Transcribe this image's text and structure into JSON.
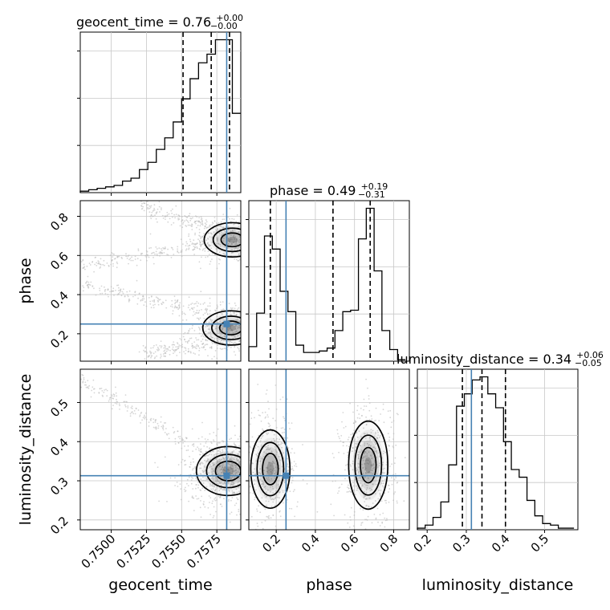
{
  "titles": {
    "geocent_time": {
      "main": "geocent_time = 0.76",
      "sup": "+0.00",
      "sub": "−0.00"
    },
    "phase": {
      "main": "phase = 0.49",
      "sup": "+0.19",
      "sub": "−0.31"
    },
    "luminosity_distance": {
      "main": "luminosity_distance = 0.34",
      "sup": "+0.06",
      "sub": "−0.05"
    }
  },
  "axis_labels": {
    "geocent_time": "geocent_time",
    "phase": "phase",
    "luminosity_distance": "luminosity_distance"
  },
  "chart_data": {
    "type": "corner",
    "parameters": [
      "geocent_time",
      "phase",
      "luminosity_distance"
    ],
    "colors": {
      "truth": "#4682b4",
      "hist": "#000000",
      "points": "#bbbbbb",
      "density": "#444444"
    },
    "grid": true,
    "ranges": {
      "geocent_time": [
        0.7478,
        0.7592
      ],
      "phase": [
        0.06,
        0.88
      ],
      "luminosity_distance": [
        0.175,
        0.585
      ]
    },
    "ticks": {
      "geocent_time": {
        "values": [
          0.75,
          0.7525,
          0.755,
          0.7575
        ],
        "labels": [
          "0.7500",
          "0.7525",
          "0.7550",
          "0.7575"
        ]
      },
      "phase": {
        "values": [
          0.2,
          0.4,
          0.6,
          0.8
        ],
        "labels": [
          "0.2",
          "0.4",
          "0.6",
          "0.8"
        ]
      },
      "luminosity_distance": {
        "values": [
          0.2,
          0.3,
          0.4,
          0.5
        ],
        "labels": [
          "0.2",
          "0.3",
          "0.4",
          "0.5"
        ]
      }
    },
    "truths": {
      "geocent_time": 0.7582,
      "phase": 0.25,
      "luminosity_distance": 0.313
    },
    "quantiles": {
      "geocent_time": [
        0.7551,
        0.7571,
        0.7584
      ],
      "phase": [
        0.17,
        0.49,
        0.68
      ],
      "luminosity_distance": [
        0.29,
        0.34,
        0.4
      ]
    },
    "histograms": {
      "geocent_time": {
        "bin_edges": [
          0.7478,
          0.7484,
          0.749,
          0.7496,
          0.7502,
          0.7508,
          0.7514,
          0.752,
          0.7526,
          0.7532,
          0.7538,
          0.7544,
          0.755,
          0.7556,
          0.7562,
          0.7568,
          0.7574,
          0.758,
          0.7586,
          0.7592
        ],
        "counts": [
          1,
          2,
          3,
          4,
          5,
          8,
          10,
          16,
          21,
          30,
          38,
          49,
          65,
          79,
          90,
          96,
          106,
          106,
          55
        ]
      },
      "phase": {
        "bin_edges": [
          0.06,
          0.1,
          0.14,
          0.18,
          0.22,
          0.26,
          0.3,
          0.34,
          0.38,
          0.42,
          0.46,
          0.5,
          0.54,
          0.58,
          0.62,
          0.66,
          0.7,
          0.74,
          0.78,
          0.82,
          0.86
        ],
        "counts": [
          10,
          33,
          86,
          77,
          48,
          34,
          11,
          6,
          6,
          7,
          9,
          21,
          34,
          35,
          84,
          105,
          62,
          21,
          8,
          1
        ]
      },
      "luminosity_distance": {
        "bin_edges": [
          0.175,
          0.195,
          0.215,
          0.235,
          0.255,
          0.275,
          0.295,
          0.315,
          0.335,
          0.355,
          0.375,
          0.395,
          0.415,
          0.435,
          0.455,
          0.475,
          0.495,
          0.515,
          0.535,
          0.555,
          0.575
        ],
        "counts": [
          1,
          3,
          8,
          18,
          42,
          80,
          88,
          97,
          99,
          88,
          79,
          57,
          39,
          34,
          19,
          9,
          4,
          3,
          1,
          1
        ]
      }
    },
    "panels_2d": [
      {
        "x": "geocent_time",
        "y": "phase",
        "modes": [
          {
            "x": 0.7586,
            "y": 0.68,
            "sx": 0.0008,
            "sy": 0.035,
            "w": 0.45
          },
          {
            "x": 0.7585,
            "y": 0.23,
            "sx": 0.0008,
            "sy": 0.035,
            "w": 0.55
          }
        ],
        "wings": [
          {
            "x0": 0.7478,
            "y0": 0.55,
            "x1": 0.757,
            "y1": 0.66
          },
          {
            "x0": 0.7478,
            "y0": 0.45,
            "x1": 0.757,
            "y1": 0.31
          },
          {
            "x0": 0.752,
            "y0": 0.85,
            "x1": 0.7585,
            "y1": 0.72
          },
          {
            "x0": 0.752,
            "y0": 0.09,
            "x1": 0.7585,
            "y1": 0.17
          }
        ]
      },
      {
        "x": "geocent_time",
        "y": "luminosity_distance",
        "modes": [
          {
            "x": 0.7583,
            "y": 0.325,
            "sx": 0.0009,
            "sy": 0.025,
            "w": 1.0
          }
        ],
        "wings": [
          {
            "x0": 0.7478,
            "y0": 0.56,
            "x1": 0.757,
            "y1": 0.36
          }
        ]
      },
      {
        "x": "phase",
        "y": "luminosity_distance",
        "modes": [
          {
            "x": 0.17,
            "y": 0.33,
            "sx": 0.04,
            "sy": 0.04,
            "w": 0.45
          },
          {
            "x": 0.67,
            "y": 0.34,
            "sx": 0.04,
            "sy": 0.045,
            "w": 0.55
          }
        ],
        "wings": []
      }
    ]
  }
}
